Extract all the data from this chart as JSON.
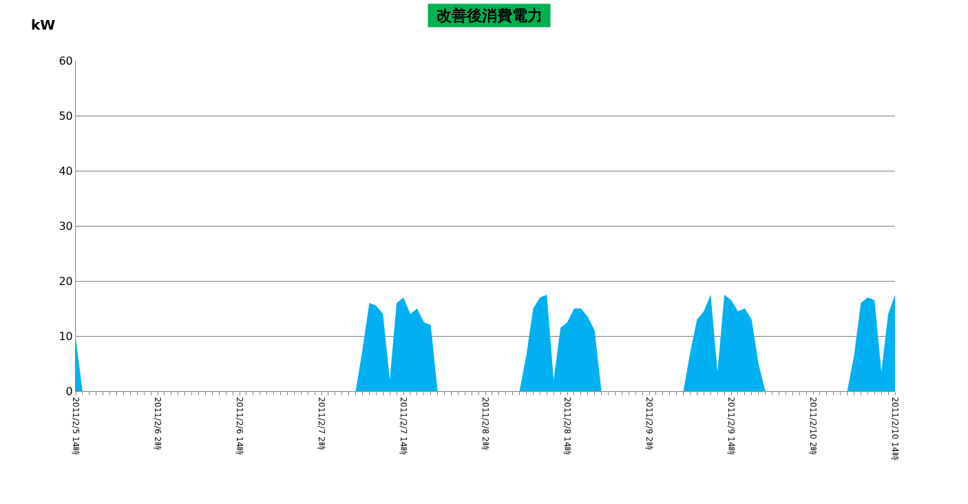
{
  "chart_data": {
    "type": "area",
    "title": "改善後消費電力",
    "ylabel": "kW",
    "categories": [
      "2011/2/5 14時",
      null,
      null,
      null,
      null,
      null,
      null,
      null,
      null,
      null,
      null,
      null,
      "2011/2/6 2時",
      null,
      null,
      null,
      null,
      null,
      null,
      null,
      null,
      null,
      null,
      null,
      "2011/2/6 14時",
      null,
      null,
      null,
      null,
      null,
      null,
      null,
      null,
      null,
      null,
      null,
      "2011/2/7 2時",
      null,
      null,
      null,
      null,
      null,
      null,
      null,
      null,
      null,
      null,
      null,
      "2011/2/7 14時",
      null,
      null,
      null,
      null,
      null,
      null,
      null,
      null,
      null,
      null,
      null,
      "2011/2/8 2時",
      null,
      null,
      null,
      null,
      null,
      null,
      null,
      null,
      null,
      null,
      null,
      "2011/2/8 14時",
      null,
      null,
      null,
      null,
      null,
      null,
      null,
      null,
      null,
      null,
      null,
      "2011/2/9 2時",
      null,
      null,
      null,
      null,
      null,
      null,
      null,
      null,
      null,
      null,
      null,
      "2011/2/9 14時",
      null,
      null,
      null,
      null,
      null,
      null,
      null,
      null,
      null,
      null,
      null,
      "2011/2/10 2時",
      null,
      null,
      null,
      null,
      null,
      null,
      null,
      null,
      null,
      null,
      null,
      "2011/2/10 14時"
    ],
    "series": [
      {
        "color": "#00b0f0",
        "values": [
          9.5,
          0,
          0,
          0,
          0,
          0,
          0,
          0,
          0,
          0,
          0,
          0,
          0,
          0,
          0,
          0,
          0,
          0,
          0,
          0,
          0,
          0,
          0,
          0,
          0,
          0,
          0,
          0,
          0,
          0,
          0,
          0,
          0,
          0,
          0,
          0,
          0,
          0,
          0,
          0,
          0,
          0,
          7.5,
          16,
          15.5,
          14,
          2,
          16,
          17,
          14,
          15,
          12.5,
          12,
          0,
          0,
          0,
          0,
          0,
          0,
          0,
          0,
          0,
          0,
          0,
          0,
          0,
          6.5,
          15,
          17,
          17.5,
          2,
          11.5,
          12.5,
          15,
          15,
          13.5,
          11,
          0,
          0,
          0,
          0,
          0,
          0,
          0,
          0,
          0,
          0,
          0,
          0,
          0,
          7,
          13,
          14.5,
          17.5,
          3.5,
          17.5,
          16.5,
          14.5,
          15,
          13,
          5,
          0,
          0,
          0,
          0,
          0,
          0,
          0,
          0,
          0,
          0,
          0,
          0,
          0,
          6.5,
          16,
          17,
          16.5,
          3.5,
          14,
          17.5
        ]
      }
    ],
    "ylim": [
      0,
      60
    ],
    "yticks": [
      0,
      10,
      20,
      30,
      40,
      50,
      60
    ],
    "grid": "y"
  }
}
